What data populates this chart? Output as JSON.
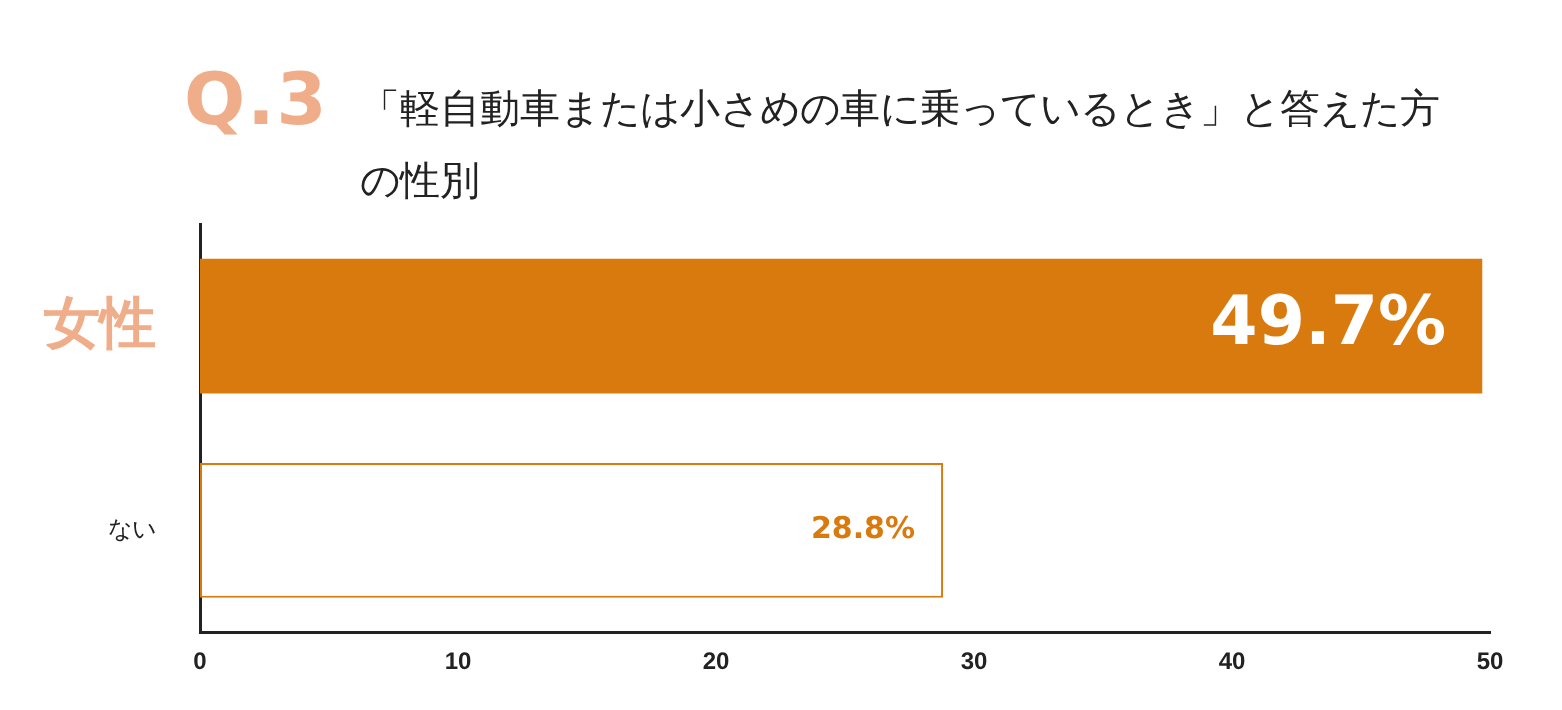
{
  "chart_data": {
    "type": "bar",
    "orientation": "horizontal",
    "title": "「軽自動車または小さめの車に乗っているとき」と答えた方の性別",
    "annotations": [
      "Q.3"
    ],
    "categories": [
      "女性",
      "ない"
    ],
    "values": [
      49.7,
      28.8
    ],
    "colors": [
      "#d97a0e",
      "#ffffff"
    ],
    "value_labels": [
      "49.7%",
      "28.8%"
    ],
    "xlim": [
      0,
      50
    ],
    "xticks": [
      0,
      10,
      20,
      30,
      40,
      50
    ],
    "grid": false,
    "legend": false
  }
}
